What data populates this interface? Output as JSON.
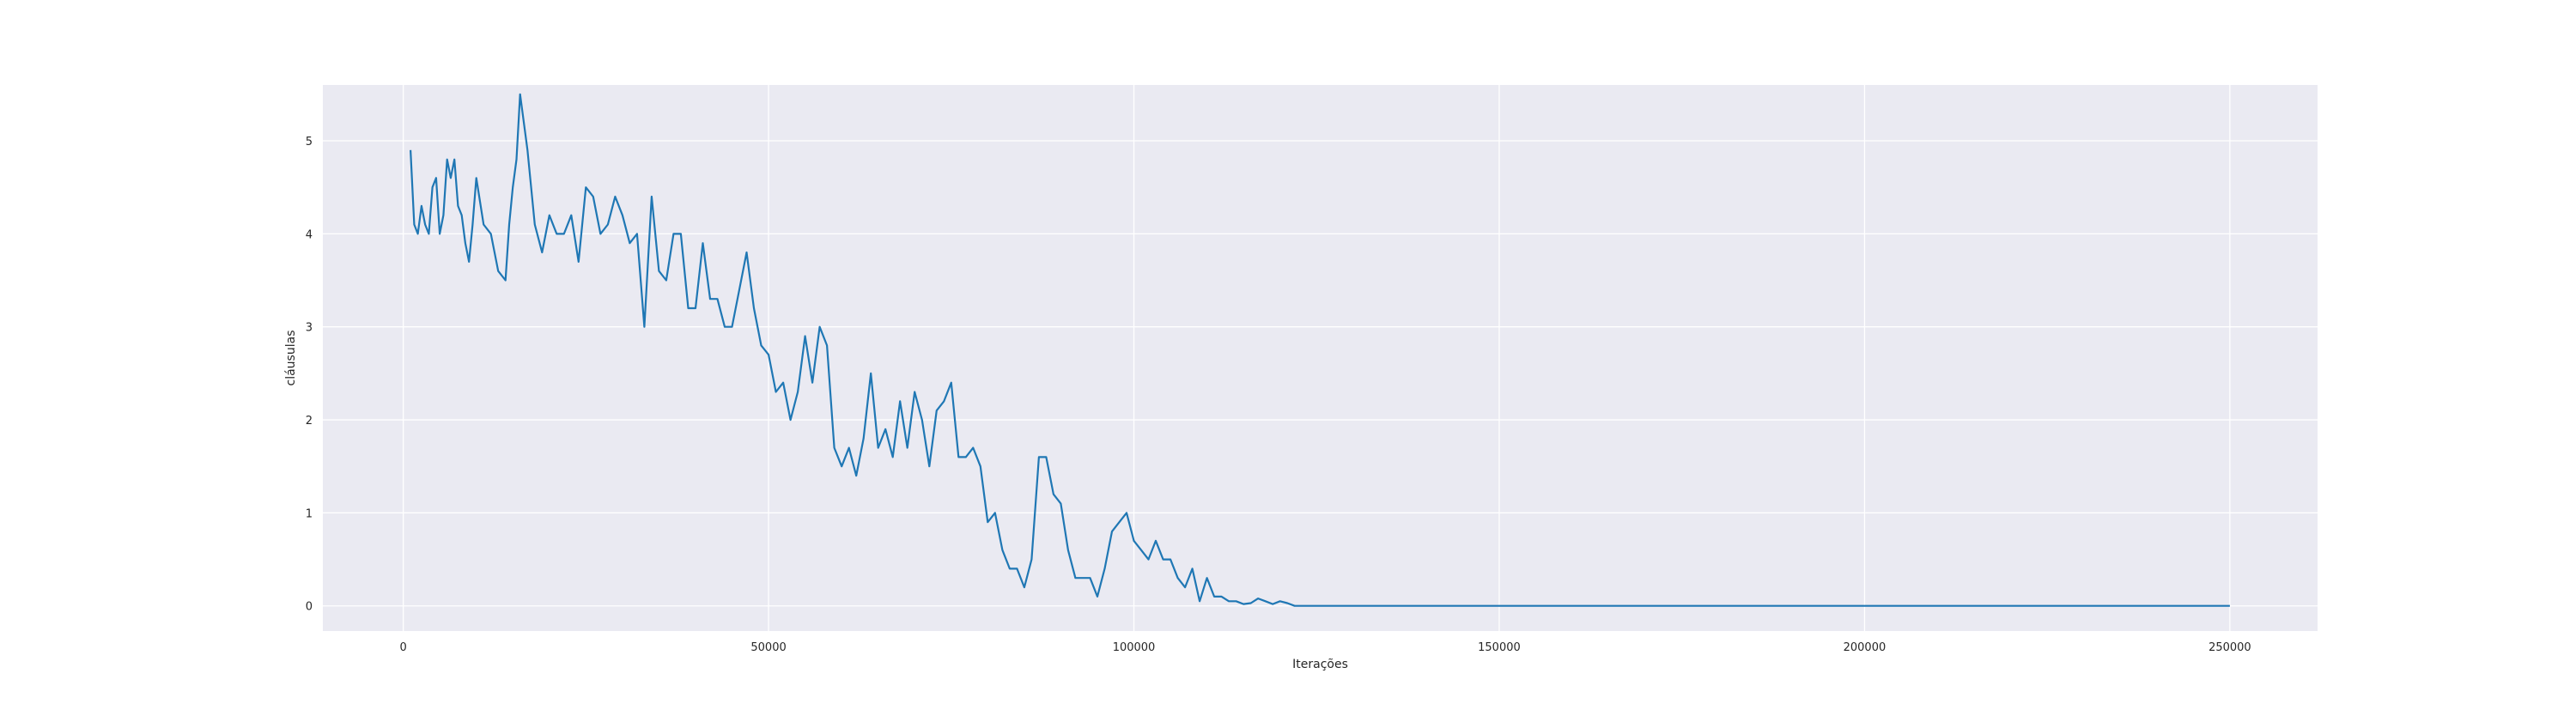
{
  "chart_data": {
    "type": "line",
    "xlabel": "Iterações",
    "ylabel": "cláusulas",
    "xlim": [
      -11000,
      262000
    ],
    "ylim": [
      -0.27,
      5.6
    ],
    "xticks": [
      0,
      50000,
      100000,
      150000,
      200000,
      250000
    ],
    "xtick_labels": [
      "0",
      "50000",
      "100000",
      "150000",
      "200000",
      "250000"
    ],
    "yticks": [
      0,
      1,
      2,
      3,
      4,
      5
    ],
    "ytick_labels": [
      "0",
      "1",
      "2",
      "3",
      "4",
      "5"
    ],
    "grid": true,
    "colors": {
      "line": "#1f77b4",
      "plot_background": "#eaeaf2",
      "grid": "#ffffff",
      "text": "#262626"
    },
    "series": [
      {
        "x": [
          1000,
          1500,
          2000,
          2500,
          3000,
          3500,
          4000,
          4500,
          5000,
          5500,
          6000,
          6500,
          7000,
          7500,
          8000,
          8500,
          9000,
          9500,
          10000,
          11000,
          12000,
          13000,
          14000,
          14500,
          15000,
          15500,
          16000,
          17000,
          18000,
          19000,
          20000,
          21000,
          22000,
          23000,
          24000,
          25000,
          26000,
          27000,
          28000,
          29000,
          30000,
          31000,
          32000,
          33000,
          34000,
          35000,
          36000,
          37000,
          38000,
          39000,
          40000,
          41000,
          42000,
          43000,
          44000,
          45000,
          46000,
          47000,
          48000,
          49000,
          50000,
          51000,
          52000,
          53000,
          54000,
          55000,
          56000,
          57000,
          58000,
          59000,
          60000,
          61000,
          62000,
          63000,
          64000,
          65000,
          66000,
          67000,
          68000,
          69000,
          70000,
          71000,
          72000,
          73000,
          74000,
          75000,
          76000,
          77000,
          78000,
          79000,
          80000,
          81000,
          82000,
          83000,
          84000,
          85000,
          86000,
          87000,
          88000,
          89000,
          90000,
          91000,
          92000,
          93000,
          94000,
          95000,
          96000,
          97000,
          98000,
          99000,
          100000,
          101000,
          102000,
          103000,
          104000,
          105000,
          106000,
          107000,
          108000,
          109000,
          110000,
          111000,
          112000,
          113000,
          114000,
          115000,
          116000,
          117000,
          118000,
          119000,
          120000,
          121000,
          122000,
          125000,
          128000,
          130000,
          140000,
          160000,
          200000,
          250000
        ],
        "y": [
          4.9,
          4.1,
          4.0,
          4.3,
          4.1,
          4.0,
          4.5,
          4.6,
          4.0,
          4.2,
          4.8,
          4.6,
          4.8,
          4.3,
          4.2,
          3.9,
          3.7,
          4.1,
          4.6,
          4.1,
          4.0,
          3.6,
          3.5,
          4.1,
          4.5,
          4.8,
          5.5,
          4.9,
          4.1,
          3.8,
          4.2,
          4.0,
          4.0,
          4.2,
          3.7,
          4.5,
          4.4,
          4.0,
          4.1,
          4.4,
          4.2,
          3.9,
          4.0,
          3.0,
          4.4,
          3.6,
          3.5,
          4.0,
          4.0,
          3.2,
          3.2,
          3.9,
          3.3,
          3.3,
          3.0,
          3.0,
          3.4,
          3.8,
          3.2,
          2.8,
          2.7,
          2.3,
          2.4,
          2.0,
          2.3,
          2.9,
          2.4,
          3.0,
          2.8,
          1.7,
          1.5,
          1.7,
          1.4,
          1.8,
          2.5,
          1.7,
          1.9,
          1.6,
          2.2,
          1.7,
          2.3,
          2.0,
          1.5,
          2.1,
          2.2,
          2.4,
          1.6,
          1.6,
          1.7,
          1.5,
          0.9,
          1.0,
          0.6,
          0.4,
          0.4,
          0.2,
          0.5,
          1.6,
          1.6,
          1.2,
          1.1,
          0.6,
          0.3,
          0.3,
          0.3,
          0.1,
          0.4,
          0.8,
          0.9,
          1.0,
          0.7,
          0.6,
          0.5,
          0.7,
          0.5,
          0.5,
          0.3,
          0.2,
          0.4,
          0.05,
          0.3,
          0.1,
          0.1,
          0.05,
          0.05,
          0.02,
          0.03,
          0.08,
          0.05,
          0.02,
          0.05,
          0.03,
          0.0,
          0.0,
          0.0,
          0.0,
          0.0,
          0.0,
          0.0,
          0.0
        ]
      }
    ]
  }
}
